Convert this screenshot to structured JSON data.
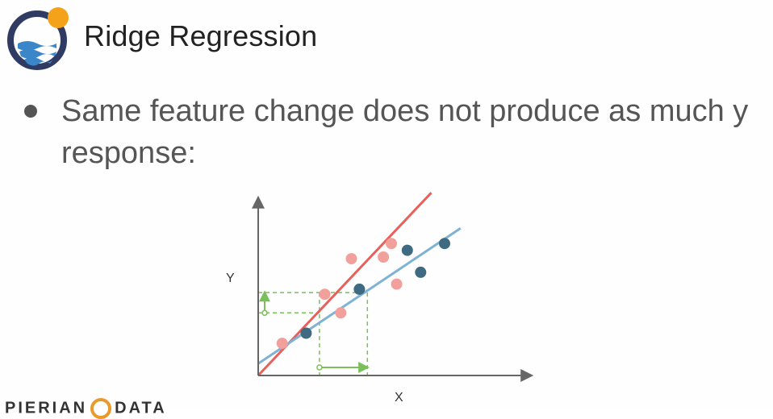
{
  "slide": {
    "title": "Ridge Regression",
    "bullet": "Same feature change does not produce as much y response:",
    "brand_left": "PIERIAN",
    "brand_right": "DATA"
  },
  "colors": {
    "title_text": "#222222",
    "bullet_text": "#555555",
    "logo_ring": "#2f3b63",
    "logo_sun": "#f5a21b",
    "logo_wave": "#3a86c8",
    "red_line": "#e8605b",
    "blue_line": "#7fb2d3",
    "red_points": "#f2a09b",
    "blue_points": "#3e6b82",
    "guide_green": "#7bbf5a",
    "axis": "#666666"
  },
  "icons": [
    "pierian-data-logo-icon",
    "bullet-dot-icon"
  ],
  "chart_data": {
    "type": "scatter",
    "title": "",
    "xlabel": "X",
    "ylabel": "Y",
    "xlim": [
      0,
      10
    ],
    "ylim": [
      0,
      10
    ],
    "grid": false,
    "series": [
      {
        "kind": "points",
        "color": "#f2a09b",
        "x": [
          0.9,
          2.5,
          3.1,
          3.5,
          4.7,
          5.0,
          5.2
        ],
        "y": [
          1.9,
          4.8,
          3.7,
          6.9,
          7.0,
          7.8,
          5.4
        ]
      },
      {
        "kind": "points",
        "color": "#3e6b82",
        "x": [
          1.8,
          3.8,
          5.6,
          6.1,
          7.0
        ],
        "y": [
          2.5,
          5.1,
          7.4,
          6.1,
          7.8
        ]
      },
      {
        "kind": "line",
        "color": "#e8605b",
        "x": [
          0,
          6.5
        ],
        "y": [
          0,
          10.8
        ]
      },
      {
        "kind": "line",
        "color": "#7fb2d3",
        "x": [
          0,
          7.6
        ],
        "y": [
          0.7,
          8.7
        ]
      }
    ],
    "annotations": {
      "x_step": [
        2.3,
        4.1
      ],
      "y_low": 3.7,
      "y_high": 4.9
    }
  }
}
